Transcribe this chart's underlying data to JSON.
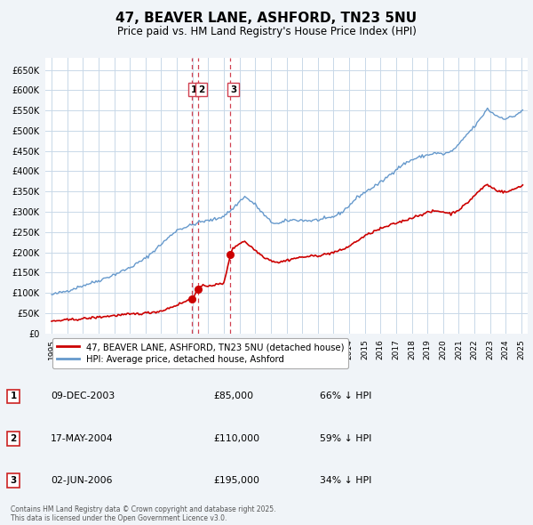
{
  "title": "47, BEAVER LANE, ASHFORD, TN23 5NU",
  "subtitle": "Price paid vs. HM Land Registry's House Price Index (HPI)",
  "title_fontsize": 11,
  "subtitle_fontsize": 8.5,
  "background_color": "#f0f4f8",
  "plot_bg_color": "#ffffff",
  "grid_color": "#c8d8e8",
  "ylim": [
    0,
    680000
  ],
  "yticks": [
    0,
    50000,
    100000,
    150000,
    200000,
    250000,
    300000,
    350000,
    400000,
    450000,
    500000,
    550000,
    600000,
    650000
  ],
  "xlim_start": 1994.6,
  "xlim_end": 2025.4,
  "sale_dates": [
    2003.94,
    2004.38,
    2006.42
  ],
  "sale_prices": [
    85000,
    110000,
    195000
  ],
  "sale_labels": [
    "1",
    "2",
    "3"
  ],
  "vline_color": "#d04050",
  "red_line_color": "#cc0000",
  "blue_line_color": "#6699cc",
  "legend_label_red": "47, BEAVER LANE, ASHFORD, TN23 5NU (detached house)",
  "legend_label_blue": "HPI: Average price, detached house, Ashford",
  "table_rows": [
    {
      "num": "1",
      "date": "09-DEC-2003",
      "price": "£85,000",
      "hpi": "66% ↓ HPI"
    },
    {
      "num": "2",
      "date": "17-MAY-2004",
      "price": "£110,000",
      "hpi": "59% ↓ HPI"
    },
    {
      "num": "3",
      "date": "02-JUN-2006",
      "price": "£195,000",
      "hpi": "34% ↓ HPI"
    }
  ],
  "footer_text": "Contains HM Land Registry data © Crown copyright and database right 2025.\nThis data is licensed under the Open Government Licence v3.0."
}
